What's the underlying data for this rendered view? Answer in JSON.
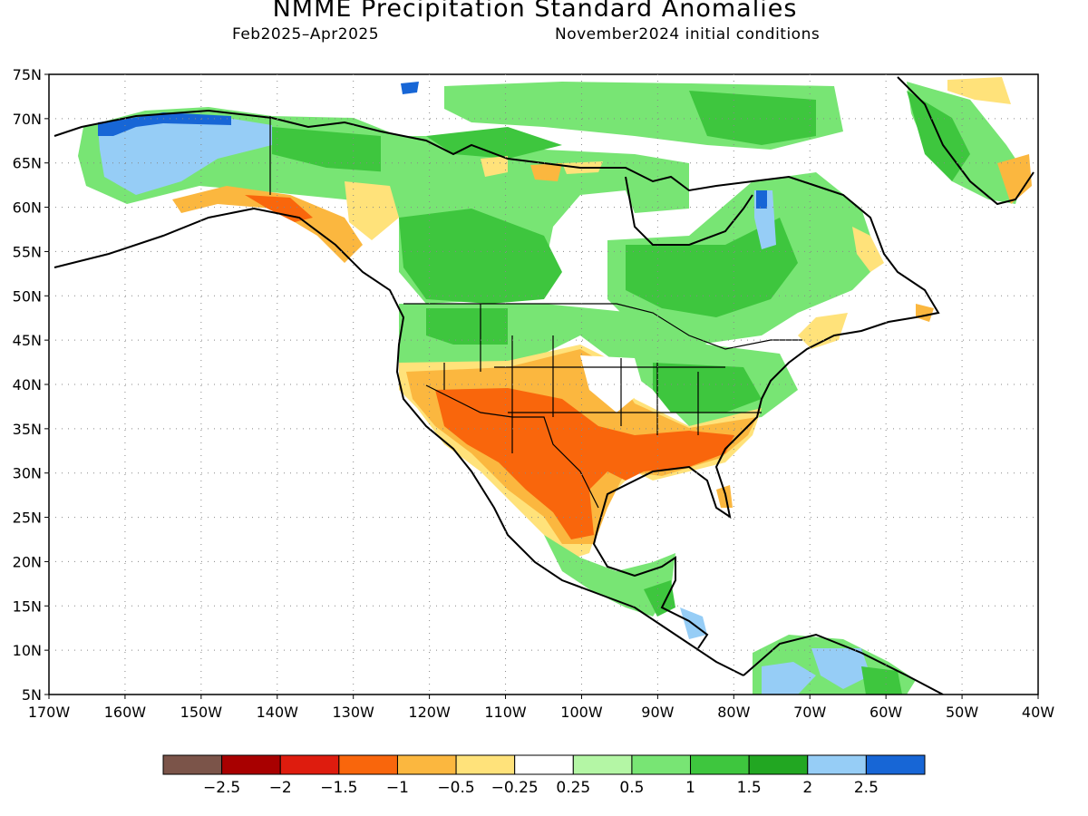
{
  "title": "NMME Precipitation Standard Anomalies",
  "period": "Feb2025–Apr2025",
  "initial_conditions": "November2024 initial conditions",
  "map": {
    "lat_labels": [
      "75N",
      "70N",
      "65N",
      "60N",
      "55N",
      "50N",
      "45N",
      "40N",
      "35N",
      "30N",
      "25N",
      "20N",
      "15N",
      "10N",
      "5N"
    ],
    "lon_labels": [
      "170W",
      "160W",
      "150W",
      "140W",
      "130W",
      "120W",
      "110W",
      "100W",
      "90W",
      "80W",
      "70W",
      "60W",
      "50W",
      "40W"
    ],
    "lon_range": [
      -170,
      -40
    ],
    "lat_range": [
      5,
      75
    ]
  },
  "legend": {
    "colors": [
      "#7b5449",
      "#a80000",
      "#de1c0e",
      "#f9660c",
      "#fbb73f",
      "#ffe27a",
      "#ffffff",
      "#b4f6a5",
      "#78e574",
      "#3ec63e",
      "#22a722",
      "#96cdf6",
      "#1766d6"
    ],
    "labels": [
      "−2.5",
      "−2",
      "−1.5",
      "−1",
      "−0.5",
      "−0.25",
      "0.25",
      "0.5",
      "1",
      "1.5",
      "2",
      "2.5"
    ]
  }
}
